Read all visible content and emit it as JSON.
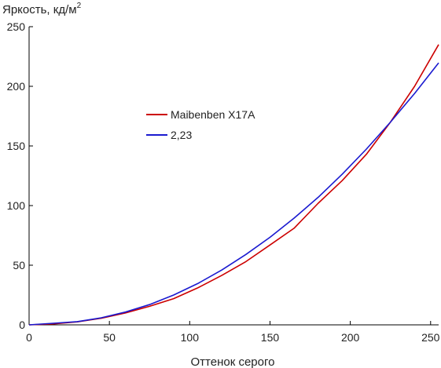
{
  "chart_data": {
    "type": "line",
    "title": "",
    "ylabel": "Яркость, кд/м",
    "ylabel_superscript": "2",
    "xlabel": "Оттенок серого",
    "xlim": [
      0,
      255
    ],
    "ylim": [
      0,
      250
    ],
    "xticks": [
      0,
      50,
      100,
      150,
      200,
      250
    ],
    "yticks": [
      0,
      50,
      100,
      150,
      200,
      250
    ],
    "grid": false,
    "legend_position": "center-left",
    "series": [
      {
        "name": "Maibenben X17A",
        "color": "#cc0000",
        "x": [
          0,
          15,
          30,
          45,
          60,
          75,
          90,
          105,
          120,
          135,
          150,
          165,
          180,
          195,
          210,
          225,
          240,
          255
        ],
        "y": [
          0,
          0.8,
          2.5,
          5.5,
          10,
          15.5,
          22,
          31,
          41.5,
          53,
          67,
          81,
          102,
          121,
          143,
          170,
          200,
          235
        ]
      },
      {
        "name": "2,23",
        "color": "#1a1ad0",
        "x": [
          0,
          15,
          30,
          45,
          60,
          75,
          90,
          105,
          120,
          135,
          150,
          165,
          180,
          195,
          210,
          225,
          240,
          255
        ],
        "y": [
          0,
          1.3,
          2.7,
          5.9,
          10.7,
          17,
          25,
          34.6,
          46,
          59,
          73.4,
          89.5,
          107,
          126.4,
          147.4,
          170,
          194,
          219.7
        ]
      }
    ]
  }
}
